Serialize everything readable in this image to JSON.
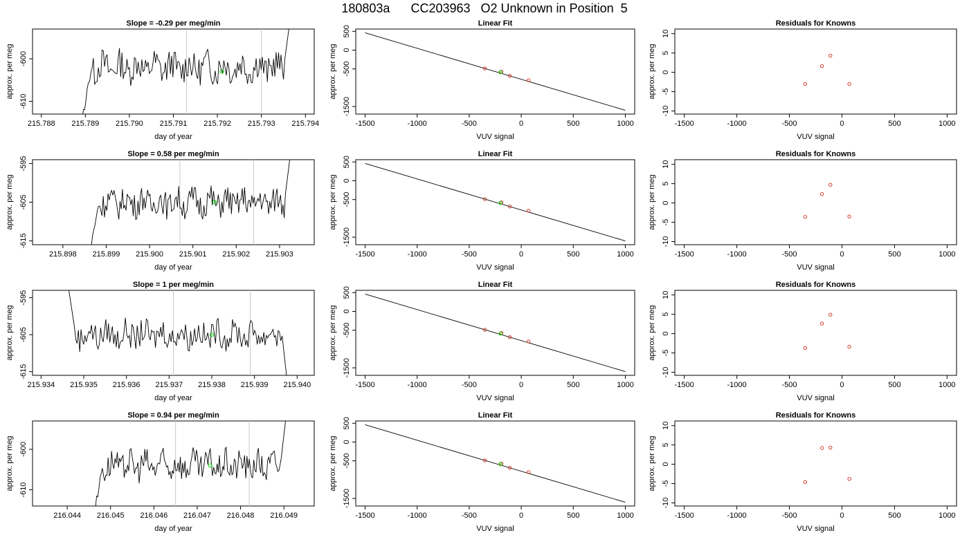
{
  "main_title": "180803a      CC203963   O2 Unknown in Position  5",
  "chart_data": [
    {
      "type": "line",
      "title": "Slope =  -0.29  per meg/min",
      "xlabel": "day of year",
      "ylabel": "approx. per meg",
      "xlim": [
        215.7878,
        215.7942
      ],
      "ylim": [
        -613,
        -593
      ],
      "xticks": [
        "215.788",
        "215.789",
        "215.790",
        "215.791",
        "215.792",
        "215.793",
        "215.794"
      ],
      "yticks": [
        "-600",
        "-610"
      ],
      "vlines": [
        215.7913,
        215.793
      ],
      "highlight": {
        "x": 215.7921,
        "y": -603
      },
      "trace": {
        "x_start": 215.7889,
        "x_end": 215.7937,
        "mean": -602,
        "amp": 3.5,
        "edge": "down-up"
      }
    },
    {
      "type": "line",
      "title": "Slope =  0.58  per meg/min",
      "xlabel": "day of year",
      "ylabel": "approx. per meg",
      "xlim": [
        215.8973,
        215.9038
      ],
      "ylim": [
        -616,
        -594
      ],
      "xticks": [
        "215.898",
        "215.899",
        "215.900",
        "215.901",
        "215.902",
        "215.903"
      ],
      "yticks": [
        "-595",
        "-605",
        "-615"
      ],
      "vlines": [
        215.9007,
        215.9024
      ],
      "highlight": {
        "x": 215.9015,
        "y": -605
      },
      "trace": {
        "x_start": 215.8986,
        "x_end": 215.9033,
        "mean": -605,
        "amp": 3.5,
        "edge": "down-up"
      }
    },
    {
      "type": "line",
      "title": "Slope =  1  per meg/min",
      "xlabel": "day of year",
      "ylabel": "approx. per meg",
      "xlim": [
        215.9338,
        215.9404
      ],
      "ylim": [
        -616,
        -593
      ],
      "xticks": [
        "215.934",
        "215.935",
        "215.936",
        "215.937",
        "215.938",
        "215.939",
        "215.940"
      ],
      "yticks": [
        "-595",
        "-605",
        "-615"
      ],
      "vlines": [
        215.9371,
        215.9389
      ],
      "highlight": {
        "x": 215.938,
        "y": -605
      },
      "trace": {
        "x_start": 215.9346,
        "x_end": 215.9398,
        "mean": -605,
        "amp": 3.5,
        "edge": "up-down"
      }
    },
    {
      "type": "line",
      "title": "Slope =  0.94  per meg/min",
      "xlabel": "day of year",
      "ylabel": "approx. per meg",
      "xlim": [
        216.0432,
        216.0497
      ],
      "ylim": [
        -614,
        -593
      ],
      "xticks": [
        "216.044",
        "216.045",
        "216.046",
        "216.047",
        "216.048",
        "216.049"
      ],
      "yticks": [
        "-600",
        "-610"
      ],
      "vlines": [
        216.0465,
        216.0482
      ],
      "highlight": {
        "x": 216.0473,
        "y": -604
      },
      "trace": {
        "x_start": 216.0446,
        "x_end": 216.0491,
        "mean": -604,
        "amp": 3.5,
        "edge": "down-up"
      }
    }
  ],
  "fit_panels": [
    {
      "type": "scatter",
      "title": "Linear Fit",
      "xlabel": "VUV signal",
      "ylabel": "approx. per meg",
      "xlim": [
        -1590,
        1090
      ],
      "ylim": [
        -1700,
        560
      ],
      "xticks": [
        "-1500",
        "-1000",
        "-500",
        "0",
        "500",
        "1000"
      ],
      "yticks": [
        "500",
        "0",
        "-500",
        "-1500"
      ],
      "line": [
        [
          -1500,
          460
        ],
        [
          1000,
          -1600
        ]
      ],
      "points": [
        [
          -350,
          -489
        ],
        [
          -190,
          -574
        ],
        [
          -110,
          -685
        ],
        [
          70,
          -800
        ]
      ],
      "unknown": [
        [
          -200,
          -590
        ]
      ]
    },
    {
      "type": "scatter",
      "title": "Linear Fit",
      "xlabel": "VUV signal",
      "ylabel": "approx. per meg",
      "xlim": [
        -1590,
        1090
      ],
      "ylim": [
        -1700,
        560
      ],
      "xticks": [
        "-1500",
        "-1000",
        "-500",
        "0",
        "500",
        "1000"
      ],
      "yticks": [
        "500",
        "0",
        "-500",
        "-1500"
      ],
      "line": [
        [
          -1500,
          460
        ],
        [
          1000,
          -1600
        ]
      ],
      "points": [
        [
          -350,
          -489
        ],
        [
          -190,
          -574
        ],
        [
          -110,
          -685
        ],
        [
          70,
          -800
        ]
      ],
      "unknown": [
        [
          -200,
          -590
        ]
      ]
    },
    {
      "type": "scatter",
      "title": "Linear Fit",
      "xlabel": "VUV signal",
      "ylabel": "approx. per meg",
      "xlim": [
        -1590,
        1090
      ],
      "ylim": [
        -1700,
        560
      ],
      "xticks": [
        "-1500",
        "-1000",
        "-500",
        "0",
        "500",
        "1000"
      ],
      "yticks": [
        "500",
        "0",
        "-500",
        "-1500"
      ],
      "line": [
        [
          -1500,
          460
        ],
        [
          1000,
          -1600
        ]
      ],
      "points": [
        [
          -350,
          -489
        ],
        [
          -190,
          -574
        ],
        [
          -110,
          -685
        ],
        [
          70,
          -800
        ]
      ],
      "unknown": [
        [
          -200,
          -590
        ]
      ]
    },
    {
      "type": "scatter",
      "title": "Linear Fit",
      "xlabel": "VUV signal",
      "ylabel": "approx. per meg",
      "xlim": [
        -1590,
        1090
      ],
      "ylim": [
        -1700,
        560
      ],
      "xticks": [
        "-1500",
        "-1000",
        "-500",
        "0",
        "500",
        "1000"
      ],
      "yticks": [
        "500",
        "0",
        "-500",
        "-1500"
      ],
      "line": [
        [
          -1500,
          460
        ],
        [
          1000,
          -1600
        ]
      ],
      "points": [
        [
          -350,
          -489
        ],
        [
          -190,
          -574
        ],
        [
          -110,
          -685
        ],
        [
          70,
          -800
        ]
      ],
      "unknown": [
        [
          -200,
          -590
        ]
      ]
    }
  ],
  "residual_panels": [
    {
      "type": "scatter",
      "title": "Residuals for Knowns",
      "xlabel": "VUV signal",
      "ylabel": "approx. per meg",
      "xlim": [
        -1590,
        1090
      ],
      "ylim": [
        -10.8,
        11.2
      ],
      "xticks": [
        "-1500",
        "-1000",
        "-500",
        "0",
        "500",
        "1000"
      ],
      "yticks": [
        "10",
        "5",
        "0",
        "-5",
        "-10"
      ],
      "points": [
        [
          -350,
          -3
        ],
        [
          -190,
          1.6
        ],
        [
          -110,
          4.3
        ],
        [
          70,
          -3
        ]
      ]
    },
    {
      "type": "scatter",
      "title": "Residuals for Knowns",
      "xlabel": "VUV signal",
      "ylabel": "approx. per meg",
      "xlim": [
        -1590,
        1090
      ],
      "ylim": [
        -10.8,
        11.2
      ],
      "xticks": [
        "-1500",
        "-1000",
        "-500",
        "0",
        "500",
        "1000"
      ],
      "yticks": [
        "10",
        "5",
        "0",
        "-5",
        "-10"
      ],
      "points": [
        [
          -350,
          -3.6
        ],
        [
          -190,
          2.3
        ],
        [
          -110,
          4.7
        ],
        [
          70,
          -3.5
        ]
      ]
    },
    {
      "type": "scatter",
      "title": "Residuals for Knowns",
      "xlabel": "VUV signal",
      "ylabel": "approx. per meg",
      "xlim": [
        -1590,
        1090
      ],
      "ylim": [
        -10.8,
        11.2
      ],
      "xticks": [
        "-1500",
        "-1000",
        "-500",
        "0",
        "500",
        "1000"
      ],
      "yticks": [
        "10",
        "5",
        "0",
        "-5",
        "-10"
      ],
      "points": [
        [
          -350,
          -3.7
        ],
        [
          -190,
          2.6
        ],
        [
          -110,
          4.9
        ],
        [
          70,
          -3.4
        ]
      ]
    },
    {
      "type": "scatter",
      "title": "Residuals for Knowns",
      "xlabel": "VUV signal",
      "ylabel": "approx. per meg",
      "xlim": [
        -1590,
        1090
      ],
      "ylim": [
        -10.8,
        11.2
      ],
      "xticks": [
        "-1500",
        "-1000",
        "-500",
        "0",
        "500",
        "1000"
      ],
      "yticks": [
        "10",
        "5",
        "0",
        "-5",
        "-10"
      ],
      "points": [
        [
          -350,
          -4.6
        ],
        [
          -190,
          4.2
        ],
        [
          -110,
          4.3
        ],
        [
          70,
          -3.8
        ]
      ]
    }
  ],
  "colors": {
    "axis": "#000000",
    "trace": "#000000",
    "vline": "#c8c8c8",
    "known": "#d23c2c",
    "unknown": "#1bd81b"
  }
}
